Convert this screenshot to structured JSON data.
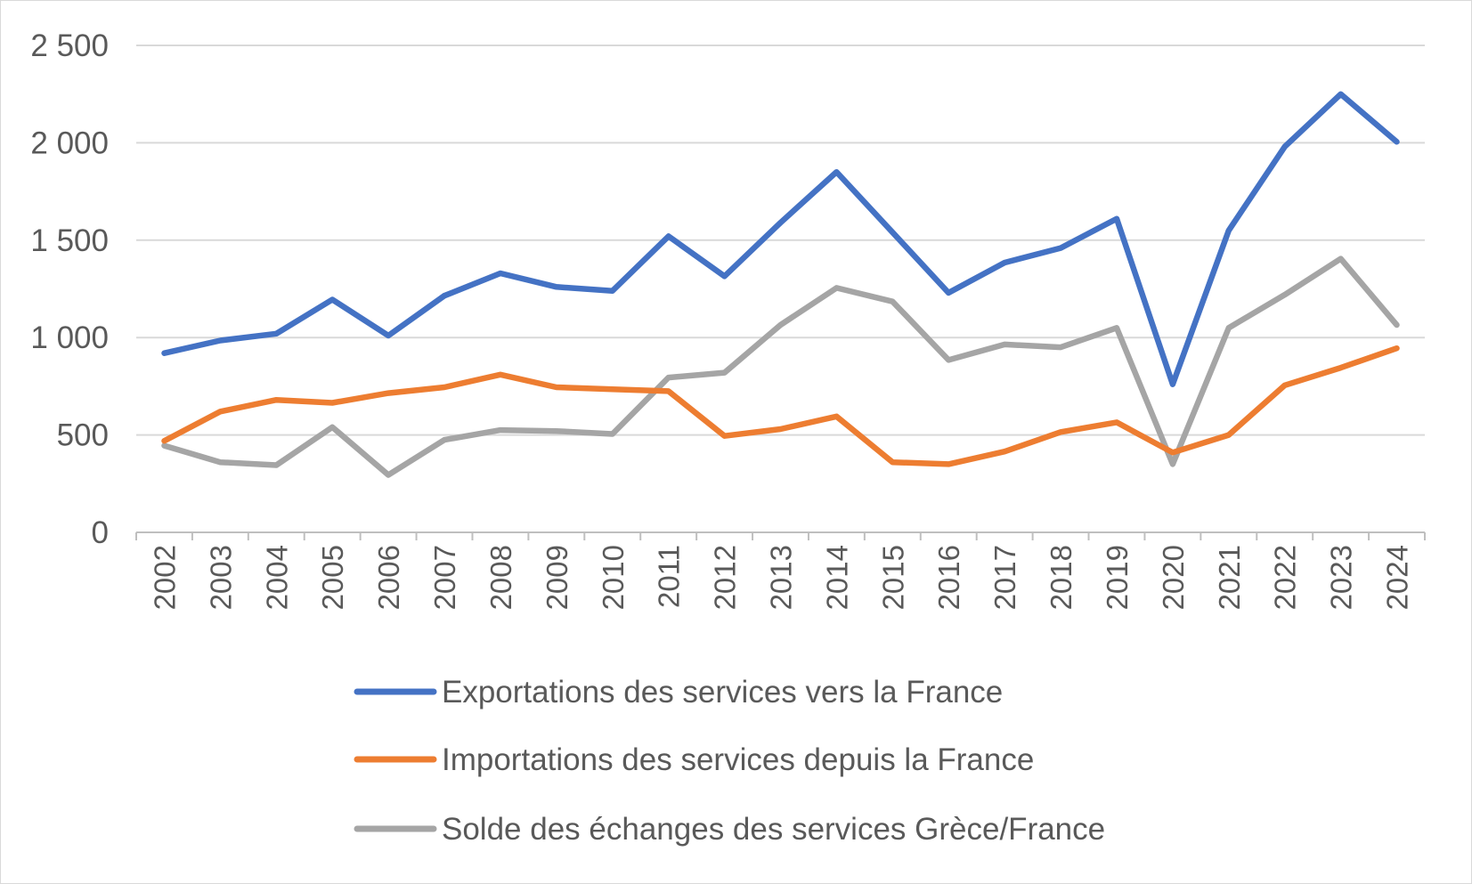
{
  "chart_data": {
    "type": "line",
    "title": "",
    "xlabel": "",
    "ylabel": "",
    "ylim": [
      0,
      2500
    ],
    "yticks": [
      0,
      500,
      1000,
      1500,
      2000,
      2500
    ],
    "ytick_labels": [
      "0",
      "500",
      "1 000",
      "1 500",
      "2 000",
      "2 500"
    ],
    "grid": true,
    "legend_position": "bottom",
    "categories": [
      "2002",
      "2003",
      "2004",
      "2005",
      "2006",
      "2007",
      "2008",
      "2009",
      "2010",
      "2011",
      "2012",
      "2013",
      "2014",
      "2015",
      "2016",
      "2017",
      "2018",
      "2019",
      "2020",
      "2021",
      "2022",
      "2023",
      "2024"
    ],
    "series": [
      {
        "name": "Exportations des services vers la France",
        "color": "#4472C4",
        "values": [
          920,
          985,
          1020,
          1195,
          1010,
          1215,
          1330,
          1260,
          1240,
          1520,
          1315,
          1590,
          1850,
          1540,
          1230,
          1385,
          1460,
          1610,
          760,
          1550,
          1980,
          2250,
          2005
        ]
      },
      {
        "name": "Importations des services depuis la France",
        "color": "#ED7D31",
        "values": [
          470,
          620,
          680,
          665,
          715,
          745,
          810,
          745,
          735,
          725,
          495,
          530,
          595,
          360,
          350,
          415,
          515,
          565,
          410,
          500,
          755,
          845,
          945
        ]
      },
      {
        "name": "Solde des échanges des services Grèce/France",
        "color": "#A5A5A5",
        "values": [
          445,
          360,
          345,
          540,
          295,
          475,
          525,
          520,
          505,
          795,
          820,
          1065,
          1255,
          1185,
          885,
          965,
          950,
          1050,
          350,
          1050,
          1220,
          1405,
          1065
        ]
      }
    ]
  }
}
